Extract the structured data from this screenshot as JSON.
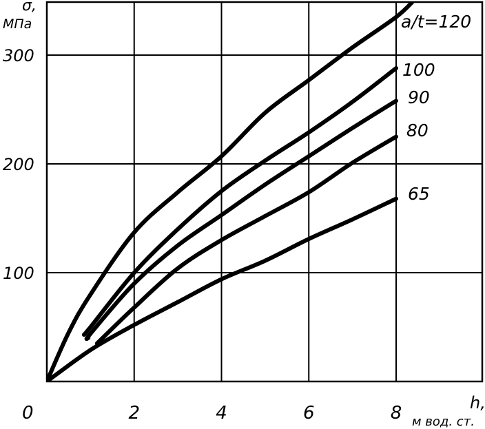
{
  "chart_data": {
    "type": "line",
    "xlabel": "h,",
    "xunit": "м вод. ст.",
    "ylabel": "σ,",
    "yunit": "МПа",
    "origin_label": "0",
    "xlim": [
      0,
      10
    ],
    "ylim": [
      0,
      350
    ],
    "grid": true,
    "x_ticks": [
      {
        "value": 2,
        "label": "2"
      },
      {
        "value": 4,
        "label": "4"
      },
      {
        "value": 6,
        "label": "6"
      },
      {
        "value": 8,
        "label": "8"
      }
    ],
    "y_ticks": [
      {
        "value": 100,
        "label": "100"
      },
      {
        "value": 200,
        "label": "200"
      },
      {
        "value": 300,
        "label": "300"
      }
    ],
    "series": [
      {
        "name": "a/t=120",
        "x": [
          0,
          0.5,
          1,
          2,
          3,
          4,
          5,
          6,
          7,
          8,
          8.4
        ],
        "y": [
          0,
          45,
          80,
          137,
          174,
          207,
          247,
          277,
          307,
          335,
          350
        ]
      },
      {
        "name": "100",
        "x": [
          0.85,
          1,
          2,
          3,
          4,
          5,
          6,
          7,
          8
        ],
        "y": [
          43,
          50,
          100,
          140,
          175,
          203,
          229,
          257,
          288
        ]
      },
      {
        "name": "90",
        "x": [
          0.95,
          1,
          2,
          3,
          4,
          5,
          6,
          7,
          8
        ],
        "y": [
          40,
          44,
          90,
          125,
          153,
          181,
          207,
          233,
          258
        ]
      },
      {
        "name": "80",
        "x": [
          1.15,
          2,
          3,
          4,
          5,
          6,
          7,
          8
        ],
        "y": [
          35,
          68,
          104,
          130,
          152,
          174,
          201,
          225
        ]
      },
      {
        "name": "65",
        "x": [
          0,
          1,
          2,
          3,
          4,
          5,
          6,
          7,
          8
        ],
        "y": [
          0,
          29,
          52,
          73,
          94,
          111,
          131,
          149,
          168
        ]
      }
    ]
  }
}
